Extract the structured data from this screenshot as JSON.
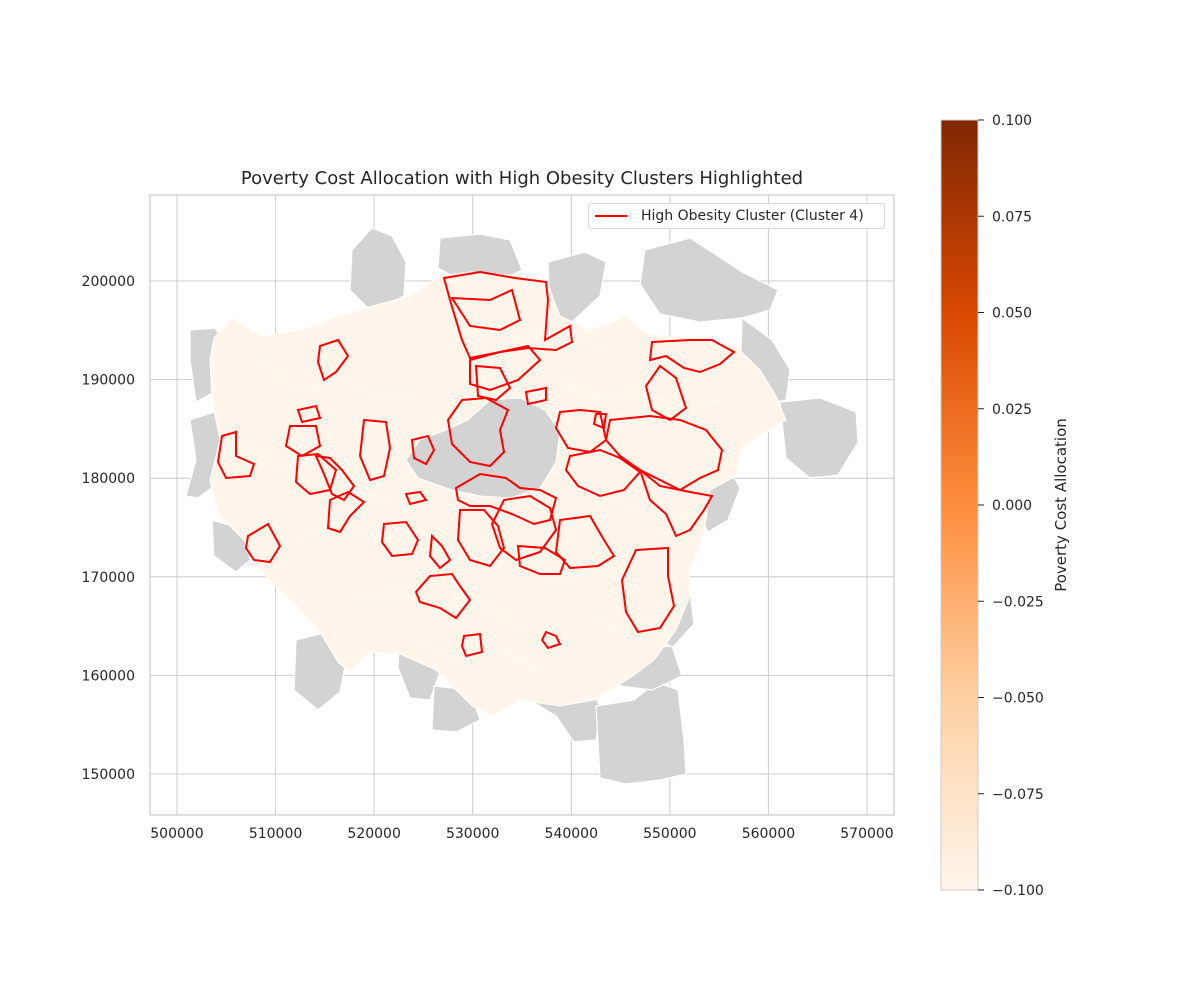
{
  "map": {
    "title": "Poverty Cost Allocation with High Obesity Clusters Highlighted",
    "x_ticks": [
      "500000",
      "510000",
      "520000",
      "530000",
      "540000",
      "550000",
      "560000",
      "570000"
    ],
    "y_ticks": [
      "150000",
      "160000",
      "170000",
      "180000",
      "190000",
      "200000"
    ],
    "legend_label": "High Obesity Cluster (Cluster 4)",
    "cluster_color": "#ff0000",
    "region_fill": "#fff5eb",
    "outside_fill": "#d3d3d3"
  },
  "colorbar": {
    "label": "Poverty Cost Allocation",
    "ticks": [
      "0.100",
      "0.075",
      "0.050",
      "0.025",
      "0.000",
      "−0.025",
      "−0.050",
      "−0.075",
      "−0.100"
    ],
    "color_top": "#7f2704",
    "color_mid": "#fd8d3c",
    "color_bottom": "#fff5eb"
  }
}
